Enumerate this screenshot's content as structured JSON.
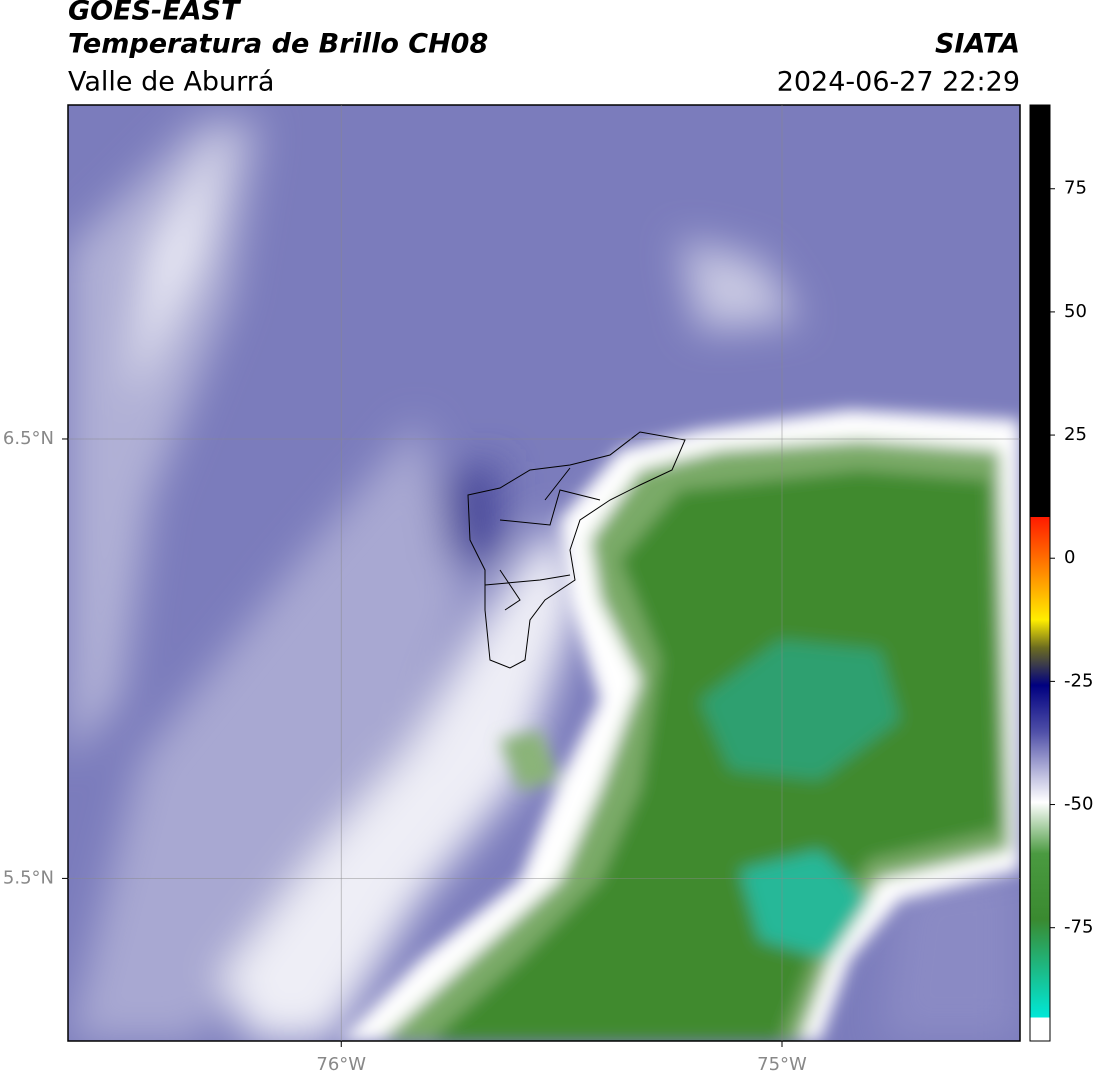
{
  "header": {
    "title": "GOES-EAST",
    "subtitle": "Temperatura de Brillo CH08",
    "region": "Valle de Aburrá",
    "source": "SIATA",
    "datetime": "2024-06-27 22:29"
  },
  "map": {
    "xlim": [
      -76.62,
      -74.46
    ],
    "ylim": [
      5.13,
      7.26
    ],
    "xticks": [
      {
        "value": -76,
        "label": "76°W"
      },
      {
        "value": -75,
        "label": "75°W"
      }
    ],
    "yticks": [
      {
        "value": 6.5,
        "label": "6.5°N"
      },
      {
        "value": 5.5,
        "label": "5.5°N"
      }
    ],
    "grid": true
  },
  "colorbar": {
    "clim": [
      -98,
      92
    ],
    "ticks": [
      75,
      50,
      25,
      0,
      -25,
      -50,
      -75
    ]
  }
}
